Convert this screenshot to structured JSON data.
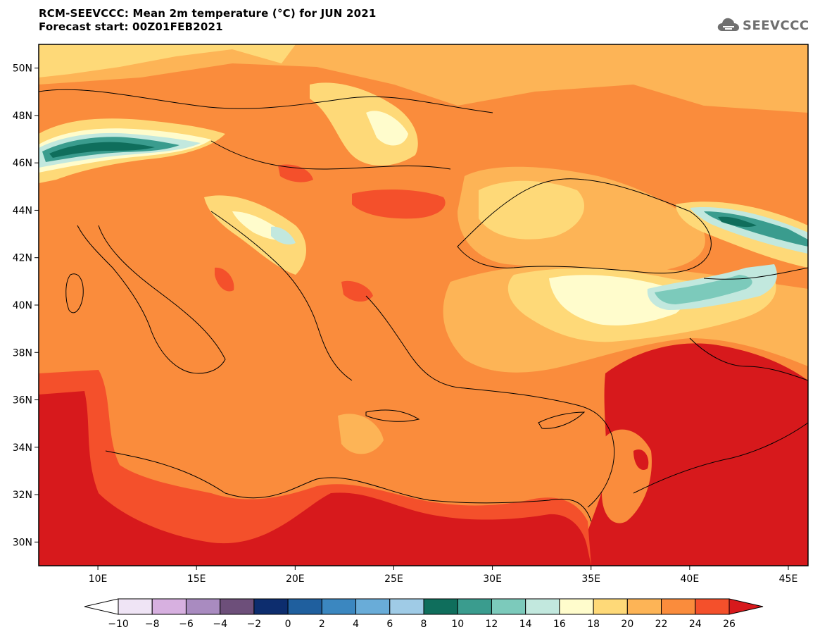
{
  "header": {
    "title": "RCM-SEEVCCC: Mean 2m temperature (°C) for JUN 2021",
    "subtitle": "Forecast start: 00Z01FEB2021"
  },
  "logo": {
    "text": "SEEVCCC",
    "icon": "cloud-icon",
    "color": "#6f6f6f"
  },
  "map": {
    "variable": "Mean 2m temperature",
    "unit": "°C",
    "lon_range": [
      7,
      46
    ],
    "lat_range": [
      29,
      51
    ],
    "lon_ticks": [
      {
        "value": 10,
        "label": "10E"
      },
      {
        "value": 15,
        "label": "15E"
      },
      {
        "value": 20,
        "label": "20E"
      },
      {
        "value": 25,
        "label": "25E"
      },
      {
        "value": 30,
        "label": "30E"
      },
      {
        "value": 35,
        "label": "35E"
      },
      {
        "value": 40,
        "label": "40E"
      },
      {
        "value": 45,
        "label": "45E"
      }
    ],
    "lat_ticks": [
      {
        "value": 30,
        "label": "30N"
      },
      {
        "value": 32,
        "label": "32N"
      },
      {
        "value": 34,
        "label": "34N"
      },
      {
        "value": 36,
        "label": "36N"
      },
      {
        "value": 38,
        "label": "38N"
      },
      {
        "value": 40,
        "label": "40N"
      },
      {
        "value": 42,
        "label": "42N"
      },
      {
        "value": 44,
        "label": "44N"
      },
      {
        "value": 46,
        "label": "46N"
      },
      {
        "value": 48,
        "label": "48N"
      },
      {
        "value": 50,
        "label": "50N"
      }
    ]
  },
  "colorbar": {
    "levels": [
      "-10",
      "-8",
      "-6",
      "-4",
      "-2",
      "0",
      "2",
      "4",
      "6",
      "8",
      "10",
      "12",
      "14",
      "16",
      "18",
      "20",
      "22",
      "24",
      "26"
    ],
    "under_color": "#ffffff",
    "over_color": "#d7191c",
    "colors": [
      "#efe4f5",
      "#d7b0e0",
      "#a98bc0",
      "#6d4f7a",
      "#0d2d6e",
      "#1f5f9e",
      "#3b87c0",
      "#69acd8",
      "#9fcbe6",
      "#0f6e5c",
      "#3a9c8e",
      "#7ccabb",
      "#c2e8de",
      "#fffccc",
      "#fed978",
      "#fdb456",
      "#fa8c3c",
      "#f4502b"
    ]
  }
}
